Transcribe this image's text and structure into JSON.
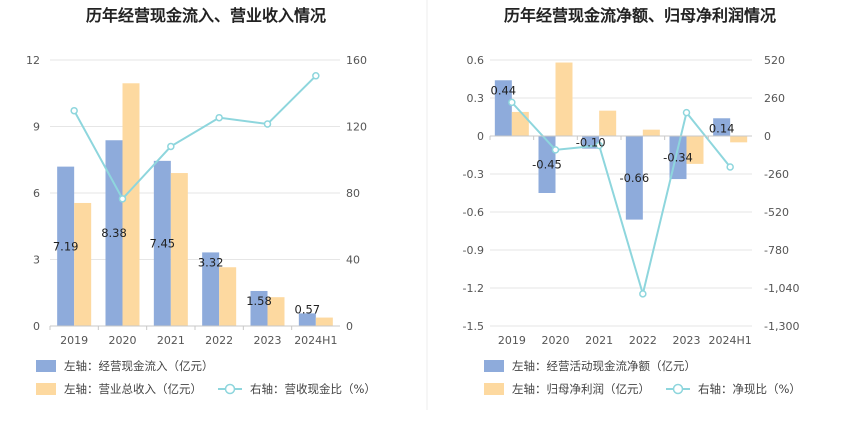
{
  "chart_data": [
    {
      "type": "bar",
      "title": "历年经营现金流入、营业收入情况",
      "categories": [
        "2019",
        "2020",
        "2021",
        "2022",
        "2023",
        "2024H1"
      ],
      "y_left": {
        "range": [
          0,
          12
        ],
        "ticks": [
          "0",
          "3",
          "6",
          "9",
          "12"
        ]
      },
      "y_right": {
        "range": [
          0,
          160
        ],
        "ticks": [
          "0",
          "40",
          "80",
          "120",
          "160"
        ]
      },
      "series": [
        {
          "name": "左轴：经营现金流入（亿元）",
          "kind": "bar",
          "axis": "left",
          "color": "#8eabdb",
          "values": [
            7.19,
            8.38,
            7.45,
            3.32,
            1.58,
            0.57
          ],
          "labels": [
            "7.19",
            "8.38",
            "7.45",
            "3.32",
            "1.58",
            "0.57"
          ]
        },
        {
          "name": "左轴：营业总收入（亿元）",
          "kind": "bar",
          "axis": "left",
          "color": "#fdd9a0",
          "values": [
            5.55,
            10.95,
            6.9,
            2.65,
            1.3,
            0.38
          ]
        },
        {
          "name": "右轴：营收现金比（%）",
          "kind": "line",
          "axis": "right",
          "color": "#8ed6dd",
          "values": [
            129.5,
            76.5,
            108,
            125.3,
            121.5,
            150.5
          ]
        }
      ],
      "grid": true,
      "legend_position": "bottom"
    },
    {
      "type": "bar",
      "title": "历年经营现金流净额、归母净利润情况",
      "categories": [
        "2019",
        "2020",
        "2021",
        "2022",
        "2023",
        "2024H1"
      ],
      "y_left": {
        "range": [
          -1.5,
          0.6
        ],
        "ticks": [
          "-1.5",
          "-1.2",
          "-0.9",
          "-0.6",
          "-0.3",
          "0",
          "0.3",
          "0.6"
        ]
      },
      "y_right": {
        "range": [
          -1300,
          520
        ],
        "ticks": [
          "-1,300",
          "-1,040",
          "-780",
          "-520",
          "-260",
          "0",
          "260",
          "520"
        ]
      },
      "series": [
        {
          "name": "左轴：经营活动现金流净额（亿元）",
          "kind": "bar",
          "axis": "left",
          "color": "#8eabdb",
          "values": [
            0.44,
            -0.45,
            -0.1,
            -0.66,
            -0.34,
            0.14
          ],
          "labels": [
            "0.44",
            "-0.45",
            "-0.10",
            "-0.66",
            "-0.34",
            "0.14"
          ]
        },
        {
          "name": "左轴：归母净利润（亿元）",
          "kind": "bar",
          "axis": "left",
          "color": "#fdd9a0",
          "values": [
            0.19,
            0.58,
            0.2,
            0.05,
            -0.22,
            -0.05
          ]
        },
        {
          "name": "右轴：净现比（%）",
          "kind": "line",
          "axis": "right",
          "color": "#8ed6dd",
          "values": [
            230,
            -95,
            -65,
            -1080,
            160,
            -212
          ]
        }
      ],
      "grid": true,
      "legend_position": "bottom"
    }
  ]
}
